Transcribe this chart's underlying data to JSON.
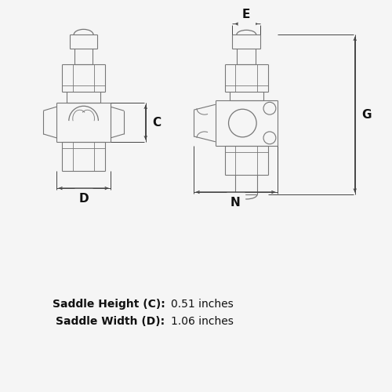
{
  "bg_color": "#f5f5f5",
  "line_color": "#444444",
  "draw_color": "#777777",
  "text_color": "#111111",
  "label_fs": 11,
  "spec_fs": 10,
  "fig_w": 5.0,
  "fig_h": 5.0,
  "specs": [
    {
      "label": "Saddle Height (C):",
      "value": "0.51 inches"
    },
    {
      "label": "Saddle Width (D):",
      "value": "1.06 inches"
    }
  ]
}
